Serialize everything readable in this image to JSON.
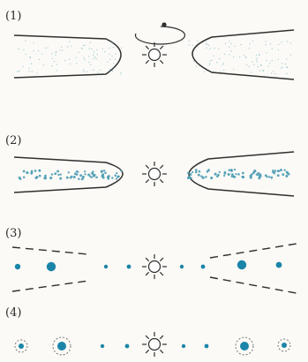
{
  "colors": {
    "ink": "#2f2f2f",
    "dust": "#4a9bb5",
    "planet": "#1a85a8",
    "background": "#fbfaf6"
  },
  "stages": [
    {
      "label": "(1)",
      "id": "stage-1",
      "description": "dusty-disk"
    },
    {
      "label": "(2)",
      "id": "stage-2",
      "description": "dust-settling"
    },
    {
      "label": "(3)",
      "id": "stage-3",
      "description": "planetesimals-forming"
    },
    {
      "label": "(4)",
      "id": "stage-4",
      "description": "planets-with-halos"
    }
  ],
  "icons": [
    "sun-icon",
    "rotation-arrow-icon"
  ]
}
